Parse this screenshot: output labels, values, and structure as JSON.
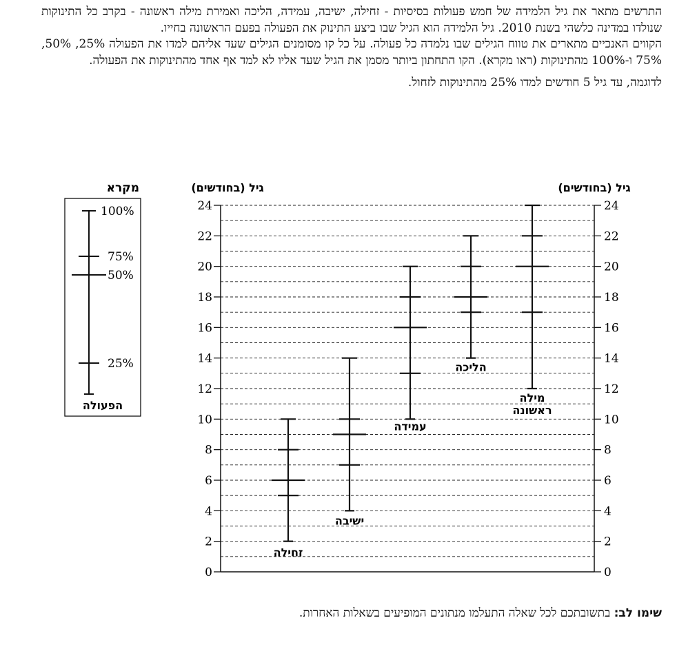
{
  "intro": {
    "line1": "התרשים מתאר את גיל הלמידה של חמש פעולות בסיסיות - זחילה, ישיבה, עמידה, הליכה ואמירת מילה ראשונה - בקרב כל התינוקות שנולדו במדינה כלשהי בשנת 2010.  גיל הלמידה הוא הגיל שבו ביצע התינוק את הפעולה בפעם הראשונה בחייו.",
    "line2": "הקווים האנכיים מתארים את טווח הגילים שבו נלמדה כל פעולה.  על כל קו מסומנים הגילים שעד אליהם למדו את הפעולה 25%, 50%, 75% ו-100% מהתינוקות (ראו מקרא).  הקו התחתון ביותר מסמן את הגיל שעד אליו לא למד אף אחד מהתינוקות את הפעולה.",
    "example": "לדוגמה, עד גיל 5 חודשים למדו 25% מהתינוקות לזחול."
  },
  "note": {
    "label": "שימו לב:",
    "text": "בתשובתכם לכל שאלה התעלמו מנתונים המופיעים בשאלות האחרות."
  },
  "legend": {
    "title": "מקרא",
    "label_100": "100%",
    "label_75": "75%",
    "label_50": "50%",
    "label_25": "25%",
    "bottom_label": "הפעולה"
  },
  "chart_data": {
    "type": "box",
    "ylabel_left": "גיל (בחודשים)",
    "ylabel_right": "גיל (בחודשים)",
    "ylim": [
      0,
      24
    ],
    "major_ticks": [
      0,
      2,
      4,
      6,
      8,
      10,
      12,
      14,
      16,
      18,
      20,
      22,
      24
    ],
    "grid": "dashed every 1 month",
    "series": [
      {
        "name": "זחילה",
        "min": 2,
        "p25": 5,
        "p50": 6,
        "p75": 8,
        "max": 10
      },
      {
        "name": "ישיבה",
        "min": 4,
        "p25": 7,
        "p50": 9,
        "p75": 10,
        "max": 14
      },
      {
        "name": "עמידה",
        "min": 10,
        "p25": 13,
        "p50": 16,
        "p75": 18,
        "max": 20
      },
      {
        "name": "הליכה",
        "min": 14,
        "p25": 17,
        "p50": 18,
        "p75": 20,
        "max": 22
      },
      {
        "name": "מילה ראשונה",
        "min": 12,
        "p25": 17,
        "p50": 20,
        "p75": 22,
        "max": 24
      }
    ]
  }
}
